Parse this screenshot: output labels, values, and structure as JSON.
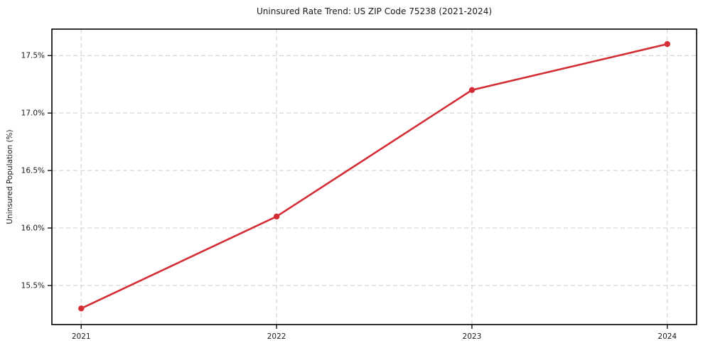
{
  "chart_data": {
    "type": "line",
    "title": "Uninsured Rate Trend: US ZIP Code 75238 (2021-2024)",
    "xlabel": "",
    "ylabel": "Uninsured Population (%)",
    "x": [
      2021,
      2022,
      2023,
      2024
    ],
    "values": [
      15.3,
      16.1,
      17.2,
      17.6
    ],
    "xlim": [
      2020.85,
      2024.15
    ],
    "ylim": [
      15.16,
      17.73
    ],
    "xticks": {
      "values": [
        2021,
        2022,
        2023,
        2024
      ],
      "labels": [
        "2021",
        "2022",
        "2023",
        "2024"
      ]
    },
    "yticks": {
      "values": [
        15.5,
        16.0,
        16.5,
        17.0,
        17.5
      ],
      "labels": [
        "15.5%",
        "16.0%",
        "16.5%",
        "17.0%",
        "17.5%"
      ]
    },
    "grid": {
      "visible": true,
      "style": "dashed",
      "color": "#cccccc"
    },
    "legend": {
      "visible": false
    },
    "colors": {
      "line": "#d32e35",
      "marker": "#d32e35",
      "axis": "#000000",
      "text": "#1a1a1a",
      "background": "#ffffff"
    },
    "marker": "circle"
  }
}
